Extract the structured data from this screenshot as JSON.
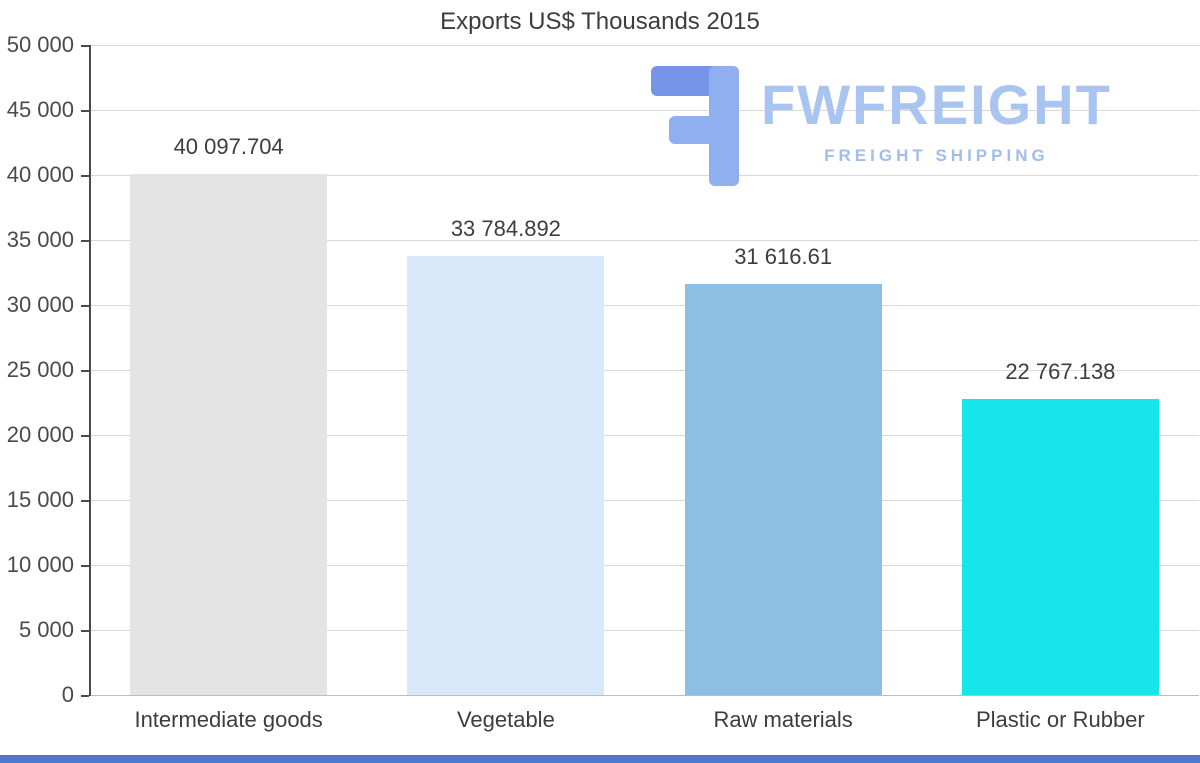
{
  "chart_data": {
    "type": "bar",
    "title": "Exports US$ Thousands 2015",
    "categories": [
      "Intermediate goods",
      "Vegetable",
      "Raw materials",
      "Plastic or Rubber"
    ],
    "values": [
      40097.704,
      33784.892,
      31616.61,
      22767.138
    ],
    "value_labels": [
      "40 097.704",
      "33 784.892",
      "31 616.61",
      "22 767.138"
    ],
    "bar_colors": [
      "#e4e4e4",
      "#d9e8f8",
      "#8dbfe4",
      "#17e5ec"
    ],
    "xlabel": "",
    "ylabel": "",
    "ylim": [
      0,
      50000
    ],
    "yticks": [
      {
        "value": 0,
        "label": "0"
      },
      {
        "value": 5000,
        "label": "5 000"
      },
      {
        "value": 10000,
        "label": "10 000"
      },
      {
        "value": 15000,
        "label": "15 000"
      },
      {
        "value": 20000,
        "label": "20 000"
      },
      {
        "value": 25000,
        "label": "25 000"
      },
      {
        "value": 30000,
        "label": "30 000"
      },
      {
        "value": 35000,
        "label": "35 000"
      },
      {
        "value": 40000,
        "label": "40 000"
      },
      {
        "value": 45000,
        "label": "45 000"
      },
      {
        "value": 50000,
        "label": "50 000"
      }
    ],
    "grid": "horizontal",
    "legend": "none"
  },
  "watermark": {
    "brand": "FWFREIGHT",
    "tagline": "FREIGHT SHIPPING",
    "brand_color": "#a9c4f0",
    "icon_color_dark": "#7596e6",
    "icon_color_light": "#8fafee"
  },
  "footer_bar_color": "#4d79d0"
}
